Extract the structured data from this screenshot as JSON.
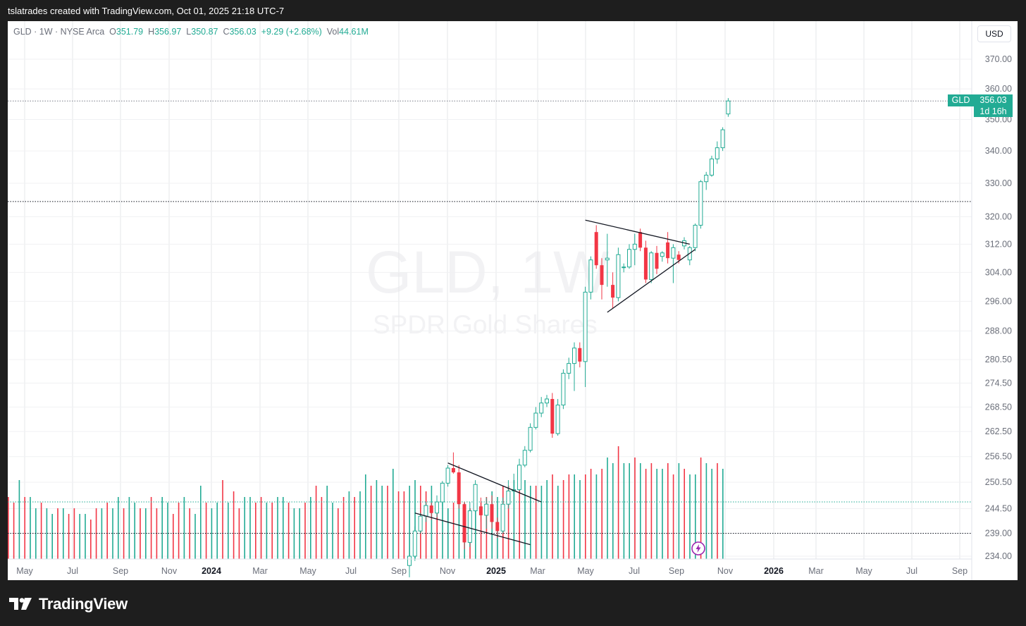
{
  "header": {
    "caption": "tslatrades created with TradingView.com, Oct 01, 2025 21:18 UTC-7"
  },
  "legend": {
    "symbol_line": "GLD · 1W · NYSE Arca",
    "o_label": "O",
    "o_value": "351.79",
    "h_label": "H",
    "h_value": "356.97",
    "l_label": "L",
    "l_value": "350.87",
    "c_label": "C",
    "c_value": "356.03",
    "change": "+9.29 (+2.68%)",
    "vol_label": "Vol",
    "vol_value": "44.61M"
  },
  "currency_button": "USD",
  "price_tag": {
    "symbol": "GLD",
    "price": "356.03",
    "countdown": "1d 16h"
  },
  "watermark": {
    "title": "GLD, 1W",
    "subtitle": "SPDR Gold Shares"
  },
  "footer": {
    "brand": "TradingView"
  },
  "colors": {
    "up": "#22ab94",
    "down": "#f23645",
    "background": "#ffffff",
    "grid": "#e6e7ea"
  },
  "chart_data": {
    "type": "candlestick",
    "scale": "logarithmic",
    "ylim": [
      234,
      376
    ],
    "y_ticks": [
      "370.00",
      "360.00",
      "350.00",
      "340.00",
      "330.00",
      "320.00",
      "312.00",
      "304.00",
      "296.00",
      "288.00",
      "280.50",
      "274.50",
      "268.50",
      "262.50",
      "256.50",
      "250.50",
      "244.50",
      "239.00",
      "234.00"
    ],
    "x_labels": [
      "May",
      "Jul",
      "Sep",
      "Nov",
      "2024",
      "Mar",
      "May",
      "Jul",
      "Sep",
      "Nov",
      "2025",
      "Mar",
      "May",
      "Jul",
      "Sep",
      "Nov",
      "2026",
      "Mar",
      "May",
      "Jul",
      "Sep"
    ],
    "x_label_bold": [
      "2024",
      "2025",
      "2026"
    ],
    "horizontal_lines": [
      {
        "price": 356.03,
        "style": "dotted",
        "color": "#787b86"
      },
      {
        "price": 324.5,
        "style": "dotted",
        "color": "#131722"
      },
      {
        "price": 246.0,
        "style": "dotted",
        "color": "#22ab94"
      },
      {
        "price": 239.0,
        "style": "dotted",
        "color": "#131722"
      }
    ],
    "candles_start": "2024-09-02",
    "candles": [
      {
        "o": 232.0,
        "h": 235.0,
        "l": 229.5,
        "c": 234.0
      },
      {
        "o": 234.0,
        "h": 240.5,
        "l": 233.0,
        "c": 239.5
      },
      {
        "o": 239.5,
        "h": 243.5,
        "l": 239.0,
        "c": 242.8
      },
      {
        "o": 242.8,
        "h": 246.0,
        "l": 241.5,
        "c": 245.2
      },
      {
        "o": 245.2,
        "h": 245.8,
        "l": 242.0,
        "c": 243.5
      },
      {
        "o": 243.5,
        "h": 247.5,
        "l": 242.5,
        "c": 246.0
      },
      {
        "o": 246.0,
        "h": 250.8,
        "l": 245.0,
        "c": 250.3
      },
      {
        "o": 250.3,
        "h": 254.5,
        "l": 249.5,
        "c": 253.8
      },
      {
        "o": 253.8,
        "h": 257.5,
        "l": 252.5,
        "c": 252.8
      },
      {
        "o": 252.8,
        "h": 254.5,
        "l": 244.5,
        "c": 245.5
      },
      {
        "o": 245.5,
        "h": 246.0,
        "l": 235.5,
        "c": 237.0
      },
      {
        "o": 237.0,
        "h": 246.0,
        "l": 236.0,
        "c": 244.0
      },
      {
        "o": 244.0,
        "h": 251.0,
        "l": 243.0,
        "c": 250.0
      },
      {
        "o": 245.0,
        "h": 247.0,
        "l": 241.5,
        "c": 243.0
      },
      {
        "o": 243.0,
        "h": 247.0,
        "l": 240.0,
        "c": 245.5
      },
      {
        "o": 245.5,
        "h": 247.5,
        "l": 240.0,
        "c": 241.5
      },
      {
        "o": 241.5,
        "h": 242.5,
        "l": 238.0,
        "c": 239.5
      },
      {
        "o": 239.5,
        "h": 247.0,
        "l": 239.0,
        "c": 245.5
      },
      {
        "o": 245.5,
        "h": 251.0,
        "l": 244.5,
        "c": 248.5
      },
      {
        "o": 248.5,
        "h": 252.5,
        "l": 248.0,
        "c": 248.8
      },
      {
        "o": 248.8,
        "h": 256.0,
        "l": 248.5,
        "c": 254.5
      },
      {
        "o": 254.5,
        "h": 259.0,
        "l": 254.0,
        "c": 258.0
      },
      {
        "o": 258.0,
        "h": 264.5,
        "l": 257.5,
        "c": 263.5
      },
      {
        "o": 263.5,
        "h": 268.5,
        "l": 263.0,
        "c": 267.0
      },
      {
        "o": 267.0,
        "h": 271.0,
        "l": 266.0,
        "c": 269.5
      },
      {
        "o": 269.5,
        "h": 271.5,
        "l": 268.5,
        "c": 270.5
      },
      {
        "o": 270.5,
        "h": 272.0,
        "l": 261.0,
        "c": 262.0
      },
      {
        "o": 262.0,
        "h": 270.5,
        "l": 261.5,
        "c": 269.0
      },
      {
        "o": 269.0,
        "h": 278.0,
        "l": 268.0,
        "c": 277.0
      },
      {
        "o": 277.0,
        "h": 281.0,
        "l": 275.5,
        "c": 279.5
      },
      {
        "o": 279.5,
        "h": 285.0,
        "l": 272.5,
        "c": 283.5
      },
      {
        "o": 283.5,
        "h": 285.0,
        "l": 278.5,
        "c": 280.0
      },
      {
        "o": 280.0,
        "h": 300.0,
        "l": 273.5,
        "c": 298.5
      },
      {
        "o": 298.5,
        "h": 308.5,
        "l": 296.5,
        "c": 307.5
      },
      {
        "o": 315.5,
        "h": 317.5,
        "l": 305.0,
        "c": 306.0
      },
      {
        "o": 306.0,
        "h": 308.0,
        "l": 296.5,
        "c": 300.5
      },
      {
        "o": 307.5,
        "h": 315.0,
        "l": 300.0,
        "c": 308.0
      },
      {
        "o": 300.5,
        "h": 304.0,
        "l": 294.0,
        "c": 297.0
      },
      {
        "o": 297.0,
        "h": 311.0,
        "l": 296.0,
        "c": 309.0
      },
      {
        "o": 305.5,
        "h": 306.5,
        "l": 304.0,
        "c": 305.5
      },
      {
        "o": 305.5,
        "h": 312.0,
        "l": 305.0,
        "c": 310.5
      },
      {
        "o": 310.5,
        "h": 315.0,
        "l": 306.0,
        "c": 312.0
      },
      {
        "o": 315.5,
        "h": 316.5,
        "l": 310.0,
        "c": 311.0
      },
      {
        "o": 311.0,
        "h": 313.0,
        "l": 301.0,
        "c": 302.0
      },
      {
        "o": 302.0,
        "h": 310.0,
        "l": 301.0,
        "c": 309.5
      },
      {
        "o": 309.5,
        "h": 311.5,
        "l": 303.5,
        "c": 305.0
      },
      {
        "o": 308.5,
        "h": 310.0,
        "l": 307.0,
        "c": 309.5
      },
      {
        "o": 312.5,
        "h": 315.5,
        "l": 306.5,
        "c": 308.0
      },
      {
        "o": 308.0,
        "h": 312.0,
        "l": 301.0,
        "c": 311.0
      },
      {
        "o": 309.0,
        "h": 310.0,
        "l": 306.5,
        "c": 307.5
      },
      {
        "o": 311.5,
        "h": 314.0,
        "l": 310.5,
        "c": 313.0
      },
      {
        "o": 307.5,
        "h": 311.5,
        "l": 306.0,
        "c": 311.0
      },
      {
        "o": 311.0,
        "h": 318.0,
        "l": 310.0,
        "c": 317.5
      },
      {
        "o": 317.5,
        "h": 331.0,
        "l": 316.5,
        "c": 330.5
      },
      {
        "o": 330.5,
        "h": 333.5,
        "l": 328.0,
        "c": 332.5
      },
      {
        "o": 332.5,
        "h": 338.5,
        "l": 332.0,
        "c": 337.5
      },
      {
        "o": 337.5,
        "h": 343.0,
        "l": 336.0,
        "c": 341.0
      },
      {
        "o": 341.0,
        "h": 347.5,
        "l": 340.0,
        "c": 346.7
      },
      {
        "o": 351.79,
        "h": 356.97,
        "l": 350.87,
        "c": 356.03
      }
    ],
    "volume_series": {
      "name": "Volume",
      "values_relative": [
        0.55,
        0.5,
        0.7,
        0.55,
        0.55,
        0.45,
        0.5,
        0.45,
        0.4,
        0.45,
        0.45,
        0.4,
        0.45,
        0.4,
        0.4,
        0.35,
        0.45,
        0.45,
        0.5,
        0.45,
        0.55,
        0.45,
        0.55,
        0.5,
        0.45,
        0.45,
        0.55,
        0.45,
        0.55,
        0.5,
        0.4,
        0.5,
        0.55,
        0.45,
        0.4,
        0.65,
        0.5,
        0.45,
        0.5,
        0.7,
        0.5,
        0.6,
        0.45,
        0.55,
        0.55,
        0.5,
        0.55,
        0.5,
        0.5,
        0.55,
        0.55,
        0.5,
        0.45,
        0.45,
        0.5,
        0.55,
        0.65,
        0.55,
        0.65,
        0.5,
        0.45,
        0.55,
        0.6,
        0.55,
        0.6,
        0.75,
        0.65,
        0.7,
        0.65,
        0.65,
        0.8,
        0.6,
        0.6,
        0.65,
        0.7,
        0.65,
        0.6,
        0.65,
        0.5,
        0.5,
        0.45,
        0.5,
        0.55,
        0.5,
        0.45,
        0.5,
        0.5,
        0.55,
        0.6,
        0.55,
        0.65,
        0.65,
        0.7,
        0.75,
        0.7,
        0.65,
        0.65,
        0.65,
        0.7,
        0.75,
        0.65,
        0.7,
        0.75,
        0.75,
        0.7,
        0.75,
        0.8,
        0.75,
        0.8,
        0.9,
        0.85,
        1.0,
        0.85,
        0.85,
        0.9,
        0.85,
        0.8,
        0.85,
        0.8,
        0.8,
        0.85,
        0.75,
        0.85,
        0.8,
        0.75,
        0.75,
        0.9,
        0.85,
        0.8,
        0.85,
        0.8
      ],
      "overlay": [
        {
          "up": true,
          "v": 0.55
        },
        {
          "up": false,
          "v": 0.48
        },
        {
          "up": true,
          "v": 0.55
        },
        {
          "up": false,
          "v": 0.6
        },
        {
          "up": true,
          "v": 0.62
        },
        {
          "up": true,
          "v": 0.52
        },
        {
          "up": false,
          "v": 0.55
        },
        {
          "up": true,
          "v": 0.6
        },
        {
          "up": false,
          "v": 0.6
        },
        {
          "up": true,
          "v": 0.55
        },
        {
          "up": true,
          "v": 0.52
        },
        {
          "up": false,
          "v": 0.48
        },
        {
          "up": true,
          "v": 0.6
        },
        {
          "up": true,
          "v": 0.62
        },
        {
          "up": false,
          "v": 0.85
        },
        {
          "up": false,
          "v": 0.9
        },
        {
          "up": true,
          "v": 0.78
        },
        {
          "up": false,
          "v": 0.6
        },
        {
          "up": true,
          "v": 0.62
        },
        {
          "up": false,
          "v": 0.55
        }
      ]
    },
    "drawings": [
      {
        "type": "trendline",
        "from": [
          "2024-10-21",
          255.0
        ],
        "to": [
          "2025-02-17",
          246.0
        ]
      },
      {
        "type": "trendline",
        "from": [
          "2024-09-09",
          243.5
        ],
        "to": [
          "2025-02-03",
          236.5
        ]
      },
      {
        "type": "trendline",
        "from": [
          "2025-04-14",
          319.0
        ],
        "to": [
          "2025-08-25",
          312.0
        ]
      },
      {
        "type": "trendline",
        "from": [
          "2025-05-12",
          293.0
        ],
        "to": [
          "2025-09-01",
          310.5
        ]
      }
    ]
  }
}
